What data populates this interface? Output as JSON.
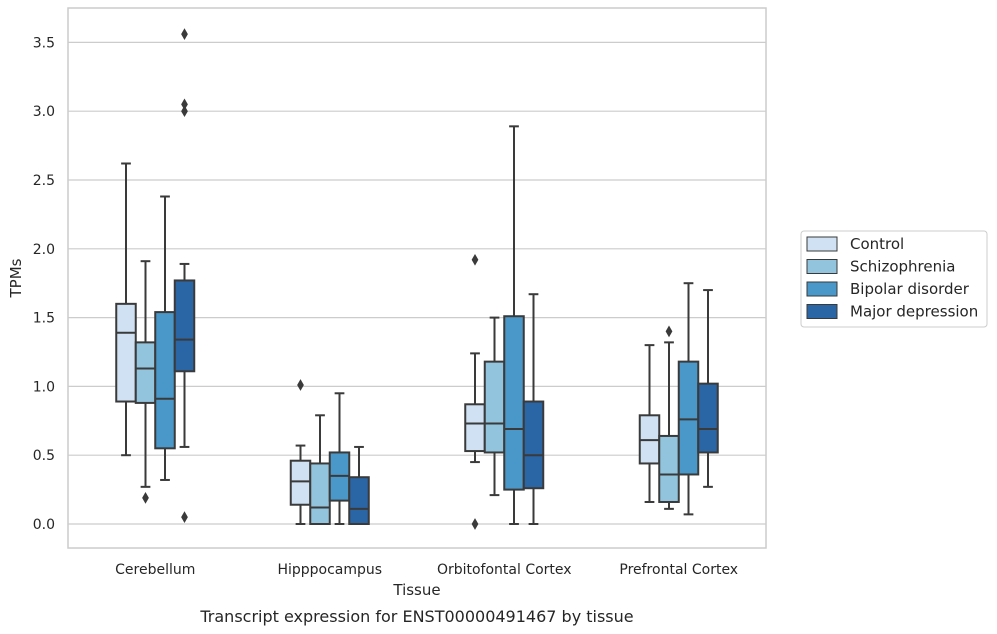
{
  "chart_data": {
    "type": "box",
    "caption": "Transcript expression for ENST00000491467 by tissue",
    "xlabel": "Tissue",
    "ylabel": "TPMs",
    "ylim": [
      -0.17,
      3.72
    ],
    "yticks": [
      "0.0",
      "0.5",
      "1.0",
      "1.5",
      "2.0",
      "2.5",
      "3.0",
      "3.5"
    ],
    "ytick_values": [
      0,
      0.5,
      1.0,
      1.5,
      2.0,
      2.5,
      3.0,
      3.5
    ],
    "categories": [
      "Cerebellum",
      "Hipppocampus",
      "Orbitofontal Cortex",
      "Prefrontal Cortex"
    ],
    "grid": "horizontal",
    "legend_position": "right",
    "series": [
      {
        "name": "Control",
        "color": "#cfe1f2",
        "boxes": [
          {
            "whislo": 0.5,
            "q1": 0.89,
            "med": 1.39,
            "q3": 1.6,
            "whishi": 2.62,
            "fliers": []
          },
          {
            "whislo": 0.0,
            "q1": 0.14,
            "med": 0.31,
            "q3": 0.46,
            "whishi": 0.57,
            "fliers": [
              1.01
            ]
          },
          {
            "whislo": 0.45,
            "q1": 0.53,
            "med": 0.73,
            "q3": 0.87,
            "whishi": 1.24,
            "fliers": [
              1.92,
              0.0
            ]
          },
          {
            "whislo": 0.16,
            "q1": 0.44,
            "med": 0.61,
            "q3": 0.79,
            "whishi": 1.3,
            "fliers": []
          }
        ]
      },
      {
        "name": "Schizophrenia",
        "color": "#93c4de",
        "boxes": [
          {
            "whislo": 0.27,
            "q1": 0.88,
            "med": 1.13,
            "q3": 1.32,
            "whishi": 1.91,
            "fliers": [
              0.19
            ]
          },
          {
            "whislo": 0.0,
            "q1": 0.0,
            "med": 0.12,
            "q3": 0.44,
            "whishi": 0.79,
            "fliers": []
          },
          {
            "whislo": 0.21,
            "q1": 0.52,
            "med": 0.73,
            "q3": 1.18,
            "whishi": 1.5,
            "fliers": []
          },
          {
            "whislo": 0.11,
            "q1": 0.16,
            "med": 0.36,
            "q3": 0.64,
            "whishi": 1.32,
            "fliers": [
              1.4
            ]
          }
        ]
      },
      {
        "name": "Bipolar disorder",
        "color": "#4a98c9",
        "boxes": [
          {
            "whislo": 0.32,
            "q1": 0.55,
            "med": 0.91,
            "q3": 1.54,
            "whishi": 2.38,
            "fliers": []
          },
          {
            "whislo": 0.0,
            "q1": 0.17,
            "med": 0.35,
            "q3": 0.52,
            "whishi": 0.95,
            "fliers": []
          },
          {
            "whislo": 0.0,
            "q1": 0.25,
            "med": 0.69,
            "q3": 1.51,
            "whishi": 2.89,
            "fliers": []
          },
          {
            "whislo": 0.07,
            "q1": 0.36,
            "med": 0.76,
            "q3": 1.18,
            "whishi": 1.75,
            "fliers": []
          }
        ]
      },
      {
        "name": "Major depression",
        "color": "#2a65a6",
        "boxes": [
          {
            "whislo": 0.56,
            "q1": 1.11,
            "med": 1.34,
            "q3": 1.77,
            "whishi": 1.89,
            "fliers": [
              3.56,
              3.05,
              3.0,
              0.05
            ]
          },
          {
            "whislo": 0.0,
            "q1": 0.0,
            "med": 0.11,
            "q3": 0.34,
            "whishi": 0.56,
            "fliers": []
          },
          {
            "whislo": 0.0,
            "q1": 0.26,
            "med": 0.5,
            "q3": 0.89,
            "whishi": 1.67,
            "fliers": []
          },
          {
            "whislo": 0.27,
            "q1": 0.52,
            "med": 0.69,
            "q3": 1.02,
            "whishi": 1.7,
            "fliers": []
          }
        ]
      }
    ]
  }
}
